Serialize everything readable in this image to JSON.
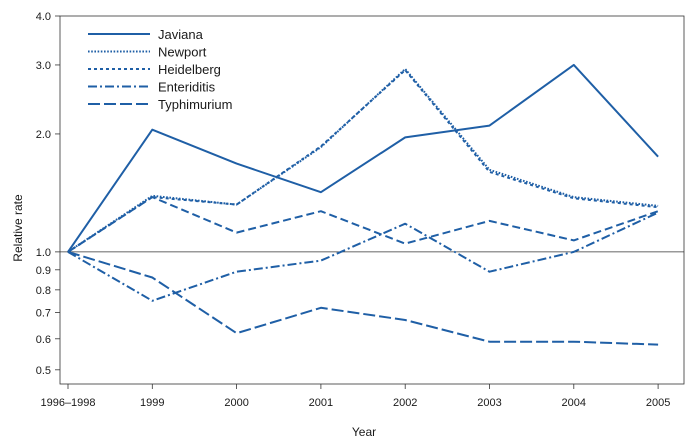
{
  "chart_data": {
    "type": "line",
    "title": "",
    "xlabel": "Year",
    "ylabel": "Relative rate",
    "y_scale": "log",
    "ylim": [
      0.46,
      4.0
    ],
    "y_ticks": [
      0.5,
      0.6,
      0.7,
      0.8,
      0.9,
      1.0,
      2.0,
      3.0,
      4.0
    ],
    "y_tick_labels": [
      "0.5",
      "0.6",
      "0.7",
      "0.8",
      "0.9",
      "1.0",
      "2.0",
      "3.0",
      "4.0"
    ],
    "reference_line": 1.0,
    "categories": [
      "1996–1998",
      "1999",
      "2000",
      "2001",
      "2002",
      "2003",
      "2004",
      "2005"
    ],
    "legend_position": "top-left",
    "line_color": "#1f5fa6",
    "series": [
      {
        "name": "Javiana",
        "style": "solid",
        "values": [
          1.0,
          2.05,
          1.68,
          1.42,
          1.96,
          2.1,
          3.0,
          1.75
        ]
      },
      {
        "name": "Newport",
        "style": "dotted",
        "values": [
          1.0,
          1.39,
          1.32,
          1.85,
          2.93,
          1.62,
          1.38,
          1.31
        ]
      },
      {
        "name": "Heidelberg",
        "style": "dashed-short",
        "values": [
          1.0,
          1.38,
          1.32,
          1.86,
          2.91,
          1.6,
          1.37,
          1.3
        ]
      },
      {
        "name": "Enteriditis",
        "style": "dash-dot",
        "values": [
          1.0,
          0.75,
          0.89,
          0.95,
          1.18,
          0.89,
          1.0,
          1.26
        ]
      },
      {
        "name": "Typhimurium",
        "style": "dashed-long",
        "values": [
          1.0,
          0.86,
          0.62,
          0.72,
          0.67,
          0.59,
          0.59,
          0.58
        ]
      },
      {
        "name": "",
        "style": "dashed-medium",
        "values": [
          1.0,
          1.38,
          1.12,
          1.27,
          1.05,
          1.2,
          1.07,
          1.27
        ]
      }
    ]
  }
}
